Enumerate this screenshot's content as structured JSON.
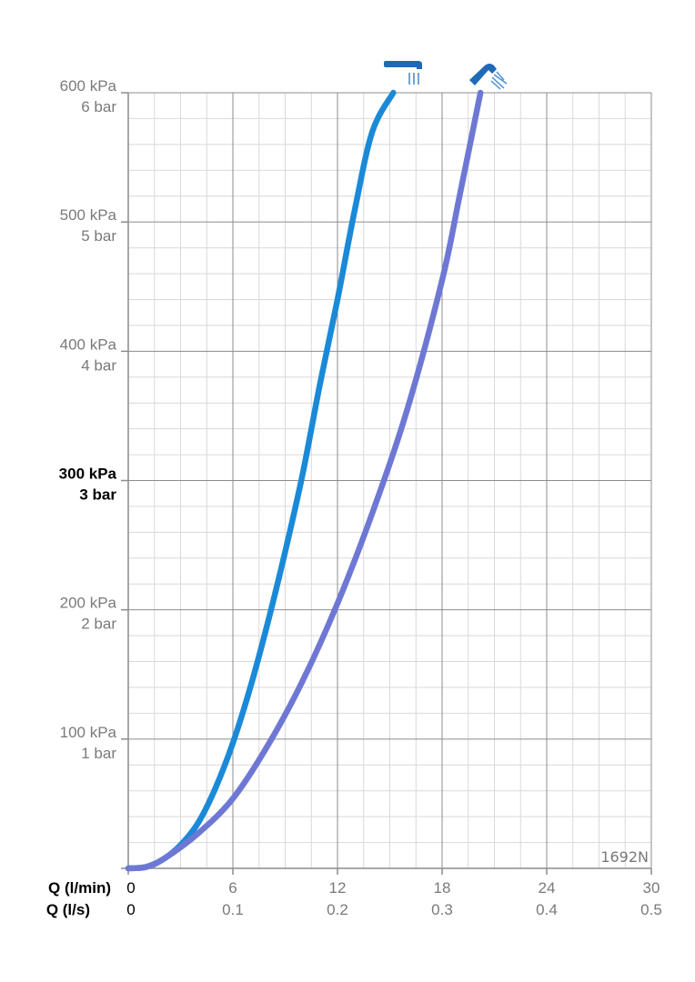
{
  "chart_data": {
    "type": "line",
    "title": "",
    "code": "1692N",
    "xlabel_primary": "Q (l/min)",
    "xlabel_secondary": "Q (l/s)",
    "x_ticks_primary": [
      "0",
      "6",
      "12",
      "18",
      "24",
      "30"
    ],
    "x_ticks_secondary": [
      "0",
      "0.1",
      "0.2",
      "0.3",
      "0.4",
      "0.5"
    ],
    "y_ticks": [
      {
        "value": 100,
        "kpa": "100 kPa",
        "bar": "1 bar",
        "bold": false
      },
      {
        "value": 200,
        "kpa": "200 kPa",
        "bar": "2 bar",
        "bold": false
      },
      {
        "value": 300,
        "kpa": "300 kPa",
        "bar": "3 bar",
        "bold": true
      },
      {
        "value": 400,
        "kpa": "400 kPa",
        "bar": "4 bar",
        "bold": false
      },
      {
        "value": 500,
        "kpa": "500 kPa",
        "bar": "5 bar",
        "bold": false
      },
      {
        "value": 600,
        "kpa": "600 kPa",
        "bar": "6 bar",
        "bold": false
      }
    ],
    "xlim": [
      0,
      30
    ],
    "ylim": [
      0,
      600
    ],
    "grid": true,
    "series": [
      {
        "icon": "overhead-shower-icon",
        "color": "#1a8ad8",
        "x": [
          0,
          1,
          2,
          3,
          4,
          5,
          6,
          7,
          8,
          9,
          10,
          11,
          12,
          13,
          14,
          15.2
        ],
        "y": [
          0,
          1,
          7,
          18,
          35,
          62,
          97,
          140,
          190,
          245,
          305,
          375,
          440,
          510,
          570,
          600
        ]
      },
      {
        "icon": "hand-shower-icon",
        "color": "#6e78d4",
        "x": [
          0,
          1,
          2,
          4,
          6,
          8,
          10,
          12,
          14,
          16,
          18,
          19,
          20.2
        ],
        "y": [
          0,
          1,
          7,
          27,
          54,
          95,
          145,
          205,
          275,
          355,
          455,
          520,
          600
        ]
      }
    ],
    "axis_color": "#8c8c8c",
    "major_grid_color": "#8c8c8c",
    "minor_grid_color": "#d9d9d9",
    "ytick_color": "#7a7a7a",
    "emphasis_color": "#000000"
  }
}
